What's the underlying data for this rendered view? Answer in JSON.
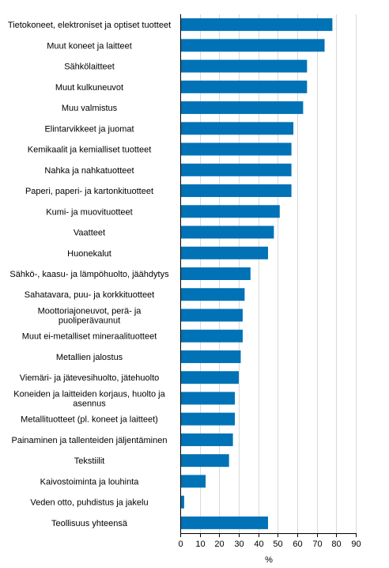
{
  "chart_data": {
    "type": "bar",
    "orientation": "horizontal",
    "categories": [
      [
        "Tietokoneet, elektroniset ja optiset tuotteet"
      ],
      [
        "Muut koneet ja laitteet"
      ],
      [
        "Sähkölaitteet"
      ],
      [
        "Muut kulkuneuvot"
      ],
      [
        "Muu valmistus"
      ],
      [
        "Elintarvikkeet ja juomat"
      ],
      [
        "Kemikaalit ja kemialliset tuotteet"
      ],
      [
        "Nahka ja nahkatuotteet"
      ],
      [
        "Paperi, paperi- ja kartonkituotteet"
      ],
      [
        "Kumi- ja muovituotteet"
      ],
      [
        "Vaatteet"
      ],
      [
        "Huonekalut"
      ],
      [
        "Sähkö-, kaasu- ja lämpöhuolto, jäähdytys"
      ],
      [
        "Sahatavara, puu- ja korkkituotteet"
      ],
      [
        "Moottoriajoneuvot, perä- ja",
        "puoliperävaunut"
      ],
      [
        "Muut ei-metalliset mineraalituotteet"
      ],
      [
        "Metallien jalostus"
      ],
      [
        "Viemäri- ja jätevesihuolto, jätehuolto"
      ],
      [
        "Koneiden ja laitteiden korjaus, huolto ja",
        "asennus"
      ],
      [
        "Metallituotteet (pl. koneet ja laitteet)"
      ],
      [
        "Painaminen ja tallenteiden jäljentäminen"
      ],
      [
        "Tekstiilit"
      ],
      [
        "Kaivostoiminta ja louhinta"
      ],
      [
        "Veden otto, puhdistus ja jakelu"
      ],
      [
        "Teollisuus yhteensä"
      ]
    ],
    "values": [
      78,
      74,
      65,
      65,
      63,
      58,
      57,
      57,
      57,
      51,
      48,
      45,
      36,
      33,
      32,
      32,
      31,
      30,
      28,
      28,
      27,
      25,
      13,
      2,
      45
    ],
    "xlabel": "%",
    "xlim": [
      0,
      90
    ],
    "xticks": [
      0,
      10,
      20,
      30,
      40,
      50,
      60,
      70,
      80,
      90
    ],
    "grid": "vertical",
    "bar_color": "#0072b5",
    "grid_color": "#d9d9d9",
    "axis_color": "#000000"
  }
}
